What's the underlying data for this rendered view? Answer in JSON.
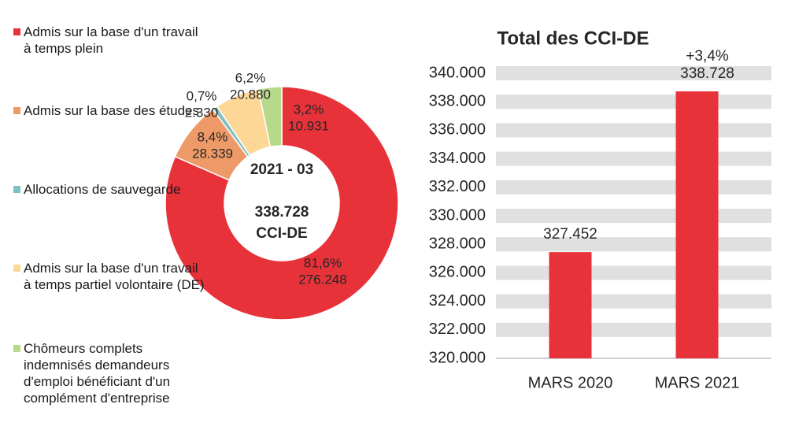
{
  "chart_data": [
    {
      "type": "donut",
      "categories": [
        "Admis sur la base d'un travail à temps plein",
        "Admis sur la base des études",
        "Allocations de sauvegarde",
        "Admis sur la base d'un travail à temps partiel volontaire (DE)",
        "Chômeurs complets indemnisés demandeurs d'emploi bénéficiant d'un complément d'entreprise"
      ],
      "values": [
        276248,
        28339,
        2330,
        20880,
        10931
      ],
      "value_labels": [
        "276.248",
        "28.339",
        "2.330",
        "20.880",
        "10.931"
      ],
      "percentage_labels": [
        "81,6%",
        "8,4%",
        "0,7%",
        "6,2%",
        "3,2%"
      ],
      "colors": [
        "#e8323a",
        "#ee9a68",
        "#7fbfc0",
        "#fdd795",
        "#b9d98a"
      ],
      "center_lines": [
        "2021 - 03",
        "338.728",
        "CCI-DE"
      ]
    },
    {
      "type": "bar",
      "title": "Total des CCI-DE",
      "categories": [
        "MARS 2020",
        "MARS 2021"
      ],
      "values": [
        327452,
        338728
      ],
      "value_labels": [
        "327.452",
        "338.728"
      ],
      "annotation": "+3,4%",
      "color": "#e8323a",
      "ylim": [
        320000,
        340000
      ],
      "yticks": [
        {
          "value": 320000,
          "label": "320.000"
        },
        {
          "value": 322000,
          "label": "322.000"
        },
        {
          "value": 324000,
          "label": "324.000"
        },
        {
          "value": 326000,
          "label": "326.000"
        },
        {
          "value": 328000,
          "label": "328.000"
        },
        {
          "value": 330000,
          "label": "330.000"
        },
        {
          "value": 332000,
          "label": "332.000"
        },
        {
          "value": 334000,
          "label": "334.000"
        },
        {
          "value": 336000,
          "label": "336.000"
        },
        {
          "value": 338000,
          "label": "338.000"
        },
        {
          "value": 340000,
          "label": "340.000"
        }
      ],
      "grid": true
    }
  ]
}
